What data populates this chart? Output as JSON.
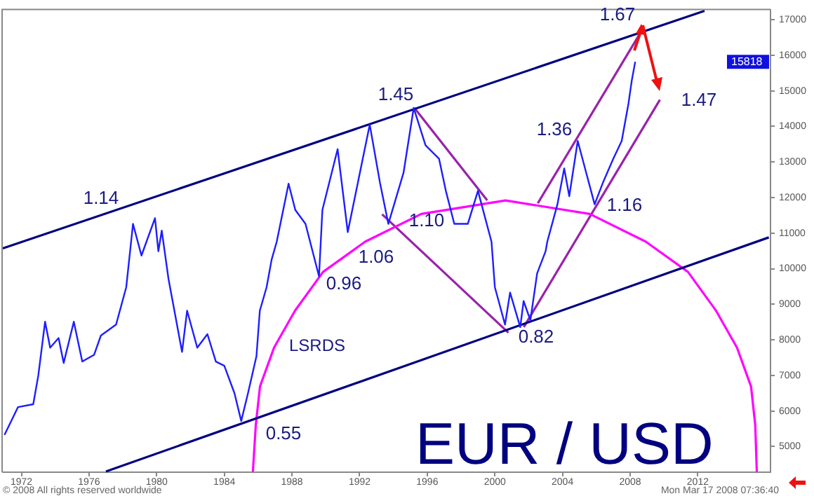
{
  "chart_data": {
    "type": "line",
    "title": "EUR / USD",
    "xlim": [
      1970.9,
      2016.3
    ],
    "ylim": [
      4280,
      17270
    ],
    "xticks": [
      1972,
      1976,
      1980,
      1984,
      1988,
      1992,
      1996,
      2000,
      2004,
      2008,
      2012
    ],
    "yticks": [
      5000,
      6000,
      7000,
      8000,
      9000,
      10000,
      11000,
      12000,
      13000,
      14000,
      15000,
      16000,
      17000
    ],
    "grid": false,
    "legend": false,
    "line_style": "solid",
    "series": [
      {
        "color": "#1e1eff",
        "x": [
          1971.0,
          1971.8,
          1972.7,
          1973.0,
          1973.4,
          1973.7,
          1974.2,
          1974.5,
          1975.1,
          1975.6,
          1976.3,
          1976.7,
          1977.6,
          1978.2,
          1978.6,
          1979.1,
          1979.9,
          1980.1,
          1980.3,
          1980.7,
          1981.5,
          1981.8,
          1982.4,
          1983.0,
          1983.5,
          1984.0,
          1984.6,
          1985.0,
          1985.4,
          1985.9,
          1986.1,
          1986.5,
          1986.8,
          1987.1,
          1987.8,
          1988.2,
          1988.8,
          1989.6,
          1989.8,
          1990.7,
          1991.3,
          1992.6,
          1993.2,
          1993.7,
          1994.6,
          1995.2,
          1995.9,
          1996.7,
          1997.1,
          1997.6,
          1998.4,
          1999.0,
          1999.8,
          2000.0,
          2000.6,
          2000.9,
          2001.5,
          2001.7,
          2002.1,
          2002.5,
          2003.0,
          2003.1,
          2003.7,
          2004.1,
          2004.4,
          2004.9,
          2005.4,
          2005.9,
          2006.4,
          2007.0,
          2007.5,
          2007.9,
          2008.1,
          2008.3
        ],
        "values": [
          5330,
          6110,
          6190,
          7000,
          8510,
          7780,
          8050,
          7350,
          8510,
          7390,
          7580,
          8120,
          8430,
          9480,
          11260,
          10370,
          11420,
          10490,
          11070,
          9710,
          7660,
          8820,
          7780,
          8160,
          7390,
          7270,
          6500,
          5720,
          6500,
          7540,
          8820,
          9480,
          10260,
          10760,
          12390,
          11650,
          11260,
          9790,
          11650,
          13360,
          11030,
          14050,
          12430,
          11260,
          12700,
          14520,
          13470,
          13090,
          12190,
          11260,
          11260,
          12190,
          10760,
          9480,
          8430,
          9330,
          8360,
          9090,
          8550,
          9870,
          10490,
          10760,
          11810,
          12820,
          12040,
          13590,
          12700,
          11810,
          12430,
          13090,
          13590,
          14640,
          15300,
          15818
        ]
      },
      {
        "color": "#000080",
        "x": [
          1970.9,
          2012.4
        ],
        "values": [
          10570,
          17250
        ]
      },
      {
        "color": "#000080",
        "x": [
          1977.0,
          2016.2
        ],
        "values": [
          4300,
          10880
        ]
      },
      {
        "color": "#ff00ff",
        "x": [
          1985.69,
          1985.86,
          1986.11,
          1986.94,
          1988.18,
          1989.84,
          1992.33,
          1995.65,
          2000.63,
          2005.61,
          2008.93,
          2011.42,
          2013.08,
          2014.32,
          2015.15,
          2015.4,
          2015.49
        ],
        "values": [
          4290,
          5600,
          6690,
          7780,
          8820,
          9910,
          10760,
          11540,
          11920,
          11540,
          10760,
          9910,
          8820,
          7780,
          6690,
          5600,
          4290
        ]
      },
      {
        "color": "#9922aa",
        "x": [
          1995.24,
          1999.55
        ],
        "values": [
          14520,
          11920
        ]
      },
      {
        "color": "#9922aa",
        "x": [
          1993.33,
          2000.8
        ],
        "values": [
          11530,
          8200
        ]
      },
      {
        "color": "#9922aa",
        "x": [
          2001.71,
          2009.76
        ],
        "values": [
          8360,
          14750
        ]
      },
      {
        "color": "#9922aa",
        "x": [
          2002.54,
          2008.68
        ],
        "values": [
          11840,
          16690
        ]
      }
    ],
    "annotations": [
      "1.14",
      "1.45",
      "1.06",
      "1.10",
      "0.96",
      "0.55",
      "0.82",
      "1.36",
      "1.16",
      "1.67",
      "1.47",
      "LSRDS",
      {
        "text": "15818",
        "y": 15818
      },
      "© 2008 All rights reserved worldwide",
      "Mon Mar 17 2008 07:36:40"
    ]
  }
}
